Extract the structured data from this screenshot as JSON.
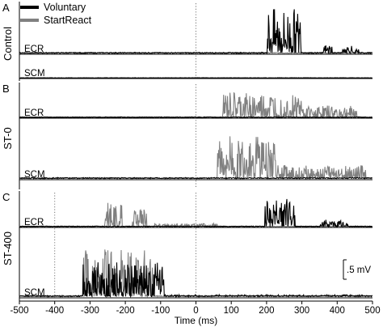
{
  "chart_data": {
    "type": "line",
    "xlabel": "Time (ms)",
    "x_ticks": [
      -500,
      -400,
      -300,
      -200,
      -100,
      0,
      100,
      200,
      300,
      400,
      500
    ],
    "xlim": [
      -500,
      500
    ],
    "legend": {
      "placement": "top-left",
      "entries": [
        {
          "name": "Voluntary",
          "color": "#000000"
        },
        {
          "name": "StartReact",
          "color": "#808080"
        }
      ]
    },
    "scale_bar": {
      "label": ".5 mV",
      "value_mV": 0.5
    },
    "colors": {
      "voluntary": "#000000",
      "startreact": "#808080",
      "axis": "#000000",
      "marker_line": "#777777"
    },
    "panels": [
      {
        "letter": "A",
        "condition": "Control",
        "marker_x": 0,
        "channels": [
          {
            "name": "ECR",
            "series": [
              {
                "name": "StartReact",
                "bursts": []
              },
              {
                "name": "Voluntary",
                "bursts": [
                  [
                    200,
                    300,
                    0.9
                  ],
                  [
                    360,
                    385,
                    0.2
                  ],
                  [
                    415,
                    445,
                    0.2
                  ],
                  [
                    450,
                    465,
                    0.12
                  ]
                ]
              }
            ]
          },
          {
            "name": "SCM",
            "series": [
              {
                "name": "StartReact",
                "bursts": []
              },
              {
                "name": "Voluntary",
                "bursts": [
                  [
                    260,
                    330,
                    0.04
                  ]
                ]
              }
            ]
          }
        ]
      },
      {
        "letter": "B",
        "condition": "ST-0",
        "marker_x": 0,
        "channels": [
          {
            "name": "ECR",
            "series": [
              {
                "name": "StartReact",
                "bursts": [
                  [
                    75,
                    300,
                    0.7
                  ],
                  [
                    300,
                    460,
                    0.35
                  ]
                ]
              },
              {
                "name": "Voluntary",
                "bursts": []
              }
            ]
          },
          {
            "name": "SCM",
            "series": [
              {
                "name": "StartReact",
                "bursts": [
                  [
                    60,
                    230,
                    0.75
                  ],
                  [
                    230,
                    480,
                    0.25
                  ]
                ]
              },
              {
                "name": "Voluntary",
                "bursts": []
              }
            ]
          }
        ]
      },
      {
        "letter": "C",
        "condition": "ST-400",
        "marker_x": -400,
        "marker2_x": 0,
        "channels": [
          {
            "name": "ECR",
            "series": [
              {
                "name": "StartReact",
                "bursts": [
                  [
                    -260,
                    -210,
                    0.65
                  ],
                  [
                    -180,
                    -140,
                    0.5
                  ],
                  [
                    -120,
                    60,
                    0.1
                  ]
                ]
              },
              {
                "name": "Voluntary",
                "bursts": [
                  [
                    195,
                    280,
                    0.75
                  ],
                  [
                    350,
                    430,
                    0.2
                  ]
                ]
              }
            ]
          },
          {
            "name": "SCM",
            "series": [
              {
                "name": "StartReact",
                "bursts": [
                  [
                    -320,
                    -120,
                    0.75
                  ]
                ]
              },
              {
                "name": "Voluntary",
                "bursts": [
                  [
                    -320,
                    -90,
                    0.55
                  ],
                  [
                    -90,
                    480,
                    0.05
                  ]
                ]
              }
            ]
          }
        ]
      }
    ]
  }
}
